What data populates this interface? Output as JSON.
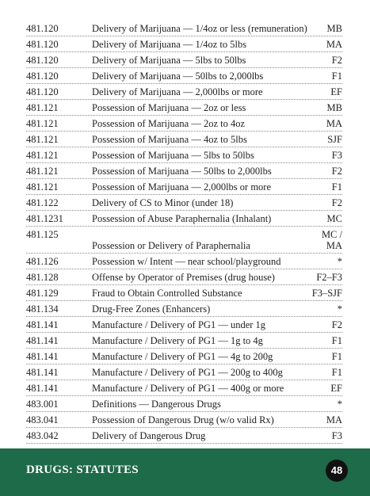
{
  "table": {
    "rows": [
      [
        "481.120",
        "Delivery of Marijuana — 1/4oz or less (remuneration)",
        "MB"
      ],
      [
        "481.120",
        "Delivery of Marijuana — 1/4oz to 5lbs",
        "MA"
      ],
      [
        "481.120",
        "Delivery of Marijuana — 5lbs to 50lbs",
        "F2"
      ],
      [
        "481.120",
        "Delivery of Marijuana — 50lbs to 2,000lbs",
        "F1"
      ],
      [
        "481.120",
        "Delivery of Marijuana — 2,000lbs or more",
        "EF"
      ],
      [
        "481.121",
        "Possession of Marijuana — 2oz or less",
        "MB"
      ],
      [
        "481.121",
        "Possession of Marijuana — 2oz to 4oz",
        "MA"
      ],
      [
        "481.121",
        "Possession of Marijuana — 4oz to 5lbs",
        "SJF"
      ],
      [
        "481.121",
        "Possession of Marijuana — 5lbs to 50lbs",
        "F3"
      ],
      [
        "481.121",
        "Possession of Marijuana — 50lbs to 2,000lbs",
        "F2"
      ],
      [
        "481.121",
        "Possession of Marijuana — 2,000lbs or more",
        "F1"
      ],
      [
        "481.122",
        "Delivery of CS to Minor (under 18)",
        "F2"
      ],
      [
        "481.1231",
        "Possession of Abuse Paraphernalia (Inhalant)",
        "MC"
      ],
      [
        "481.125",
        "Possession or Delivery of Paraphernalia",
        "MC / MA"
      ],
      [
        "481.126",
        "Possession w/ Intent — near school/playground",
        "*"
      ],
      [
        "481.128",
        "Offense by Operator of Premises (drug house)",
        "F2–F3"
      ],
      [
        "481.129",
        "Fraud to Obtain Controlled Substance",
        "F3–SJF"
      ],
      [
        "481.134",
        "Drug-Free Zones (Enhancers)",
        "*"
      ],
      [
        "481.141",
        "Manufacture / Delivery of PG1 — under 1g",
        "F2"
      ],
      [
        "481.141",
        "Manufacture / Delivery of PG1 — 1g to 4g",
        "F1"
      ],
      [
        "481.141",
        "Manufacture / Delivery of PG1 — 4g to 200g",
        "F1"
      ],
      [
        "481.141",
        "Manufacture / Delivery of PG1 — 200g to 400g",
        "F1"
      ],
      [
        "481.141",
        "Manufacture / Delivery of PG1 — 400g or more",
        "EF"
      ],
      [
        "483.001",
        "Definitions — Dangerous Drugs",
        "*"
      ],
      [
        "483.041",
        "Possession of Dangerous Drug (w/o valid Rx)",
        "MA"
      ],
      [
        "483.042",
        "Delivery of Dangerous Drug",
        "F3"
      ]
    ]
  },
  "footer": {
    "section": "DRUGS: STATUTES",
    "page": "48"
  }
}
